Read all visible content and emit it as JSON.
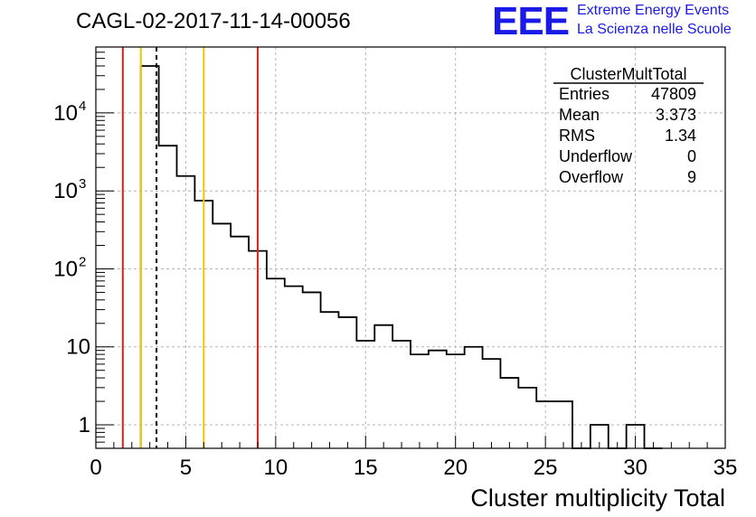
{
  "header": {
    "run_title": "CAGL-02-2017-11-14-00056",
    "logo_text": "EEE",
    "logo_line1": "Extreme Energy Events",
    "logo_line2": "La Scienza nelle Scuole"
  },
  "colors": {
    "red_line": "#e8201c",
    "yellow_line": "#f5c400",
    "grid": "#b4b4b4",
    "logo_blue": "#1a1ae6"
  },
  "chart_data": {
    "type": "histogram",
    "xlabel": "Cluster multiplicity Total",
    "ylabel": "",
    "xlim": [
      0,
      35
    ],
    "ylim": [
      0.5,
      70000
    ],
    "yscale": "log",
    "grid": true,
    "x_ticks": [
      0,
      5,
      10,
      15,
      20,
      25,
      30,
      35
    ],
    "y_ticks": [
      {
        "value": 1,
        "label": "1"
      },
      {
        "value": 10,
        "label": "10"
      },
      {
        "value": 100,
        "label": "10",
        "exp": "2"
      },
      {
        "value": 1000,
        "label": "10",
        "exp": "3"
      },
      {
        "value": 10000,
        "label": "10",
        "exp": "4"
      }
    ],
    "bin_width": 1,
    "bins": [
      {
        "x0": 2.5,
        "count": 40000
      },
      {
        "x0": 3.5,
        "count": 3800
      },
      {
        "x0": 4.5,
        "count": 1550
      },
      {
        "x0": 5.5,
        "count": 750
      },
      {
        "x0": 6.5,
        "count": 380
      },
      {
        "x0": 7.5,
        "count": 260
      },
      {
        "x0": 8.5,
        "count": 170
      },
      {
        "x0": 9.5,
        "count": 75
      },
      {
        "x0": 10.5,
        "count": 60
      },
      {
        "x0": 11.5,
        "count": 50
      },
      {
        "x0": 12.5,
        "count": 28
      },
      {
        "x0": 13.5,
        "count": 24
      },
      {
        "x0": 14.5,
        "count": 12
      },
      {
        "x0": 15.5,
        "count": 19
      },
      {
        "x0": 16.5,
        "count": 12
      },
      {
        "x0": 17.5,
        "count": 8
      },
      {
        "x0": 18.5,
        "count": 9
      },
      {
        "x0": 19.5,
        "count": 8
      },
      {
        "x0": 20.5,
        "count": 10
      },
      {
        "x0": 21.5,
        "count": 7
      },
      {
        "x0": 22.5,
        "count": 4
      },
      {
        "x0": 23.5,
        "count": 3
      },
      {
        "x0": 24.5,
        "count": 2
      },
      {
        "x0": 25.5,
        "count": 2
      },
      {
        "x0": 26.5,
        "count": 0
      },
      {
        "x0": 27.5,
        "count": 1
      },
      {
        "x0": 28.5,
        "count": 0
      },
      {
        "x0": 29.5,
        "count": 1
      },
      {
        "x0": 30.5,
        "count": 0
      }
    ],
    "vertical_lines": [
      {
        "x": 1.5,
        "color": "red"
      },
      {
        "x": 2.5,
        "color": "yellow"
      },
      {
        "x": 3.373,
        "color": "black",
        "dashed": true
      },
      {
        "x": 6.0,
        "color": "yellow"
      },
      {
        "x": 9.0,
        "color": "red"
      }
    ],
    "stats_box": {
      "title": "ClusterMultTotal",
      "rows": [
        {
          "label": "Entries",
          "value": "47809"
        },
        {
          "label": "Mean",
          "value": "3.373"
        },
        {
          "label": "RMS",
          "value": "1.34"
        },
        {
          "label": "Underflow",
          "value": "0"
        },
        {
          "label": "Overflow",
          "value": "9"
        }
      ]
    }
  }
}
